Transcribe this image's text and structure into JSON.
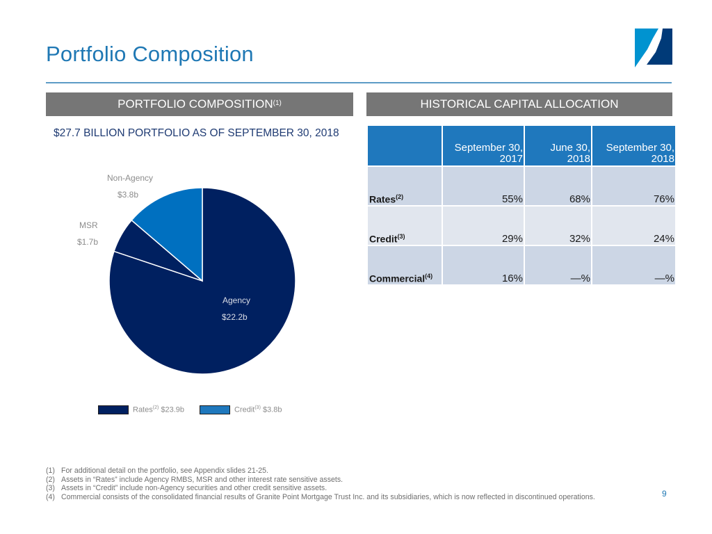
{
  "slide": {
    "title": "Portfolio Composition",
    "page_number": "9",
    "logo_colors": {
      "light": "#0093d0",
      "dark": "#003a78"
    }
  },
  "left_panel": {
    "banner_text": "PORTFOLIO COMPOSITION",
    "banner_sup": "(1)",
    "subheading": "$27.7 BILLION PORTFOLIO AS OF SEPTEMBER 30, 2018"
  },
  "right_panel": {
    "banner_text": "HISTORICAL CAPITAL ALLOCATION"
  },
  "table": {
    "columns": [
      "",
      "September 30, 2017",
      "June 30, 2018",
      "September 30, 2018"
    ],
    "column_lines": [
      [
        "",
        ""
      ],
      [
        "September 30,",
        "2017"
      ],
      [
        "June 30,",
        "2018"
      ],
      [
        "September 30,",
        "2018"
      ]
    ],
    "rows": [
      {
        "label": "Rates",
        "sup": "(2)",
        "values": [
          "55%",
          "68%",
          "76%"
        ]
      },
      {
        "label": "Credit",
        "sup": "(3)",
        "values": [
          "29%",
          "32%",
          "24%"
        ]
      },
      {
        "label": "Commercial",
        "sup": "(4)",
        "values": [
          "16%",
          "—%",
          "—%"
        ]
      }
    ]
  },
  "chart_data": {
    "type": "pie",
    "title": "$27.7 BILLION PORTFOLIO AS OF SEPTEMBER 30, 2018",
    "unit": "$ billions",
    "start_angle": "12 o'clock, clockwise",
    "slices": [
      {
        "name": "Agency",
        "label": "Agency",
        "value_label": "$22.2b",
        "value": 22.2,
        "group": "Rates",
        "color": "#002060"
      },
      {
        "name": "MSR",
        "label": "MSR",
        "value_label": "$1.7b",
        "value": 1.7,
        "group": "Rates",
        "color": "#002060"
      },
      {
        "name": "Non-Agency",
        "label": "Non-Agency",
        "value_label": "$3.8b",
        "value": 3.8,
        "group": "Credit",
        "color": "#0070c0"
      }
    ],
    "legend": [
      {
        "label": "Rates",
        "sup": "(2)",
        "value_label": "$23.9b",
        "color": "#002060"
      },
      {
        "label": "Credit",
        "sup": "(3)",
        "value_label": "$3.8b",
        "color": "#1f78bd"
      }
    ],
    "legend_position": "bottom"
  },
  "footnotes": [
    {
      "num": "(1)",
      "text": "For additional detail on the portfolio, see Appendix slides 21-25."
    },
    {
      "num": "(2)",
      "text": "Assets in “Rates” include Agency RMBS, MSR and other interest rate sensitive assets."
    },
    {
      "num": "(3)",
      "text": "Assets in “Credit” include non-Agency securities and other credit sensitive assets."
    },
    {
      "num": "(4)",
      "text": "Commercial consists of the consolidated financial results of Granite Point Mortgage Trust Inc. and its subsidiaries, which is now reflected in discontinued operations."
    }
  ]
}
